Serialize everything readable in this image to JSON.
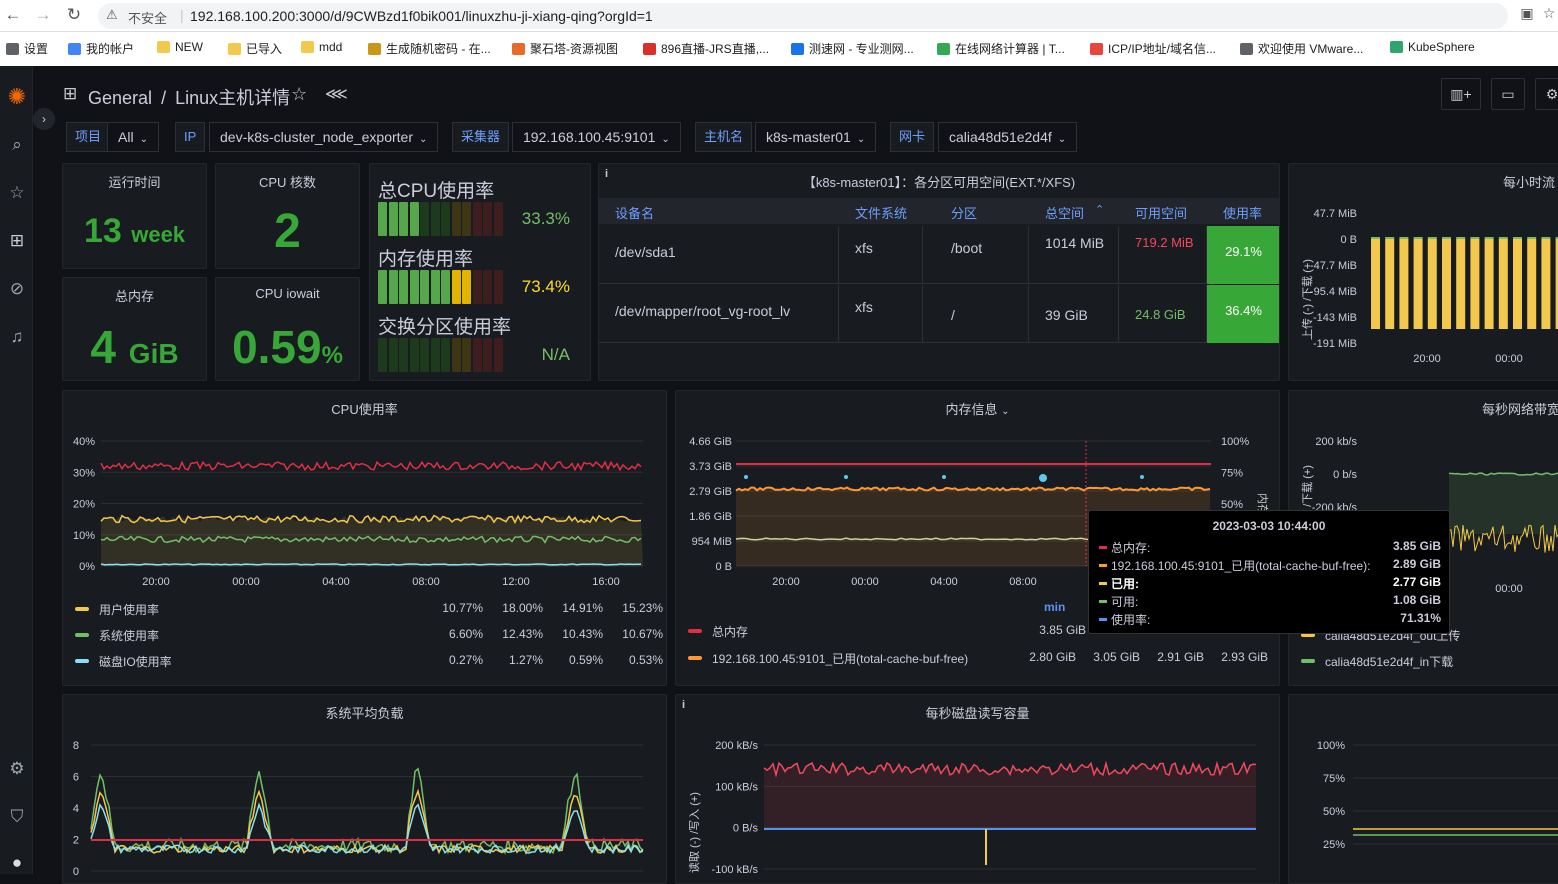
{
  "browser": {
    "insecure": "不安全",
    "url": "192.168.100.200:3000/d/9CWBzd1f0bik001/linuxzhu-ji-xiang-qing?orgId=1",
    "bookmarks": [
      {
        "label": "设置",
        "color": "#5f6368"
      },
      {
        "label": "我的帐户",
        "color": "#4285f4"
      },
      {
        "label": "NEW",
        "color": "#f2c94c"
      },
      {
        "label": "已导入",
        "color": "#f2c94c"
      },
      {
        "label": "mdd",
        "color": "#f2c94c"
      },
      {
        "label": "生成随机密码 - 在...",
        "color": "#c9961a"
      },
      {
        "label": "聚石塔-资源视图",
        "color": "#e96b2c"
      },
      {
        "label": "896直播-JRS直播,...",
        "color": "#d9302b"
      },
      {
        "label": "测速网 - 专业测网...",
        "color": "#1a73e8"
      },
      {
        "label": "在线网络计算器 | T...",
        "color": "#34a853"
      },
      {
        "label": "ICP/IP地址/域名信...",
        "color": "#e8453c"
      },
      {
        "label": "欢迎使用 VMware...",
        "color": "#5f6368"
      },
      {
        "label": "KubeSphere",
        "color": "#2fa66b"
      }
    ]
  },
  "dashboard": {
    "folder": "General",
    "separator": "/",
    "name": "Linux主机详情"
  },
  "variables": [
    {
      "label": "项目",
      "value": "All"
    },
    {
      "label": "IP",
      "value": "dev-k8s-cluster_node_exporter"
    },
    {
      "label": "采集器",
      "value": "192.168.100.45:9101"
    },
    {
      "label": "主机名",
      "value": "k8s-master01"
    },
    {
      "label": "网卡",
      "value": "calia48d51e2d4f"
    }
  ],
  "stats": {
    "uptime": {
      "title": "运行时间",
      "value": "13",
      "unit": "week"
    },
    "cpu_cores": {
      "title": "CPU 核数",
      "value": "2"
    },
    "mem_total": {
      "title": "总内存",
      "value": "4",
      "unit": "GiB"
    },
    "iowait": {
      "title": "CPU iowait",
      "value": "0.59",
      "unit": "%"
    }
  },
  "gauges": {
    "cpu": {
      "title": "总CPU使用率",
      "value": "33.3%",
      "fraction": 0.333
    },
    "mem": {
      "title": "内存使用率",
      "value": "73.4%",
      "fraction": 0.734
    },
    "swap": {
      "title": "交换分区使用率",
      "value": "N/A",
      "fraction": 0
    }
  },
  "disk_table": {
    "title": "【k8s-master01】：各分区可用空间(EXT.*/XFS)",
    "headers": [
      "设备名",
      "文件系统",
      "分区",
      "总空间",
      "可用空间",
      "使用率"
    ],
    "rows": [
      {
        "device": "/dev/sda1",
        "fs": "xfs",
        "mount": "/boot",
        "total": "1014 MiB",
        "avail": "719.2 MiB",
        "used": "29.1%"
      },
      {
        "device": "/dev/mapper/root_vg-root_lv",
        "fs": "xfs",
        "mount": "/",
        "total": "39 GiB",
        "avail": "24.8 GiB",
        "used": "36.4%"
      }
    ]
  },
  "hourly": {
    "title": "每小时流",
    "y_label": "上传 (-) /下载 (+)",
    "y_ticks": [
      "47.7 MiB",
      "0 B",
      "-47.7 MiB",
      "-95.4 MiB",
      "-143 MiB",
      "-191 MiB"
    ],
    "x_ticks": [
      "20:00",
      "00:00"
    ],
    "colors": {
      "bar": "#f2c94c"
    }
  },
  "cpu_panel": {
    "title": "CPU使用率",
    "y_ticks": [
      "40%",
      "30%",
      "20%",
      "10%",
      "0%"
    ],
    "x_ticks": [
      "20:00",
      "00:00",
      "04:00",
      "08:00",
      "12:00",
      "16:00"
    ],
    "legend": [
      {
        "name": "用户使用率",
        "color": "#f2c94c",
        "v": [
          "10.77%",
          "18.00%",
          "14.91%",
          "15.23%"
        ]
      },
      {
        "name": "系统使用率",
        "color": "#73bf69",
        "v": [
          "6.60%",
          "12.43%",
          "10.43%",
          "10.67%"
        ]
      },
      {
        "name": "磁盘IO使用率",
        "color": "#8ae0f2",
        "v": [
          "0.27%",
          "1.27%",
          "0.59%",
          "0.53%"
        ]
      }
    ],
    "colors": {
      "total": "#e02f44",
      "user": "#f2c94c",
      "system": "#73bf69",
      "io": "#8ae0f2"
    }
  },
  "mem_panel": {
    "title": "内存信息",
    "y_ticks": [
      "4.66 GiB",
      "3.73 GiB",
      "2.79 GiB",
      "1.86 GiB",
      "954 MiB",
      "0 B"
    ],
    "y2_ticks": [
      "100%",
      "75%",
      "50%"
    ],
    "y2_label": "内存",
    "x_ticks": [
      "20:00",
      "00:00",
      "04:00",
      "08:00"
    ],
    "legend_header": "min",
    "legend": [
      {
        "name": "总内存",
        "color": "#e02f44",
        "v": [
          "3.85 GiB"
        ]
      },
      {
        "name": "192.168.100.45:9101_已用(total-cache-buf-free)",
        "color": "#ff9830",
        "v": [
          "2.80 GiB",
          "3.05 GiB",
          "2.91 GiB",
          "2.93 GiB"
        ]
      }
    ]
  },
  "tooltip": {
    "time": "2023-03-03 10:44:00",
    "rows": [
      {
        "name": "总内存:",
        "value": "3.85 GiB",
        "color": "#e02f44"
      },
      {
        "name": "192.168.100.45:9101_已用(total-cache-buf-free):",
        "value": "2.89 GiB",
        "color": "#ff9830"
      },
      {
        "name": "已用:",
        "value": "2.77 GiB",
        "color": "#f2c94c"
      },
      {
        "name": "可用:",
        "value": "1.08 GiB",
        "color": "#73bf69"
      },
      {
        "name": "使用率:",
        "value": "71.31%",
        "color": "#5794f2"
      }
    ]
  },
  "net_panel": {
    "title": "每秒网络带宽",
    "y_label": "上传 (-) /下载 (+)",
    "y_ticks": [
      "200 kb/s",
      "0 b/s",
      "-200 kb/s"
    ],
    "x_ticks": [
      "00:00"
    ],
    "legend": [
      {
        "name": "calia48d51e2d4f_out上传",
        "color": "#f2c94c"
      },
      {
        "name": "calia48d51e2d4f_in下载",
        "color": "#73bf69"
      }
    ]
  },
  "load_panel": {
    "title": "系统平均负载",
    "y_ticks": [
      "8",
      "6",
      "4",
      "2",
      "0"
    ]
  },
  "diskio_panel": {
    "title": "每秒磁盘读写容量",
    "y_label": "读取 (-) /写入 (+)",
    "y_ticks": [
      "200 kB/s",
      "100 kB/s",
      "0 B/s",
      "-100 kB/s"
    ]
  },
  "right_bottom": {
    "y_ticks": [
      "100%",
      "75%",
      "50%",
      "25%"
    ]
  }
}
